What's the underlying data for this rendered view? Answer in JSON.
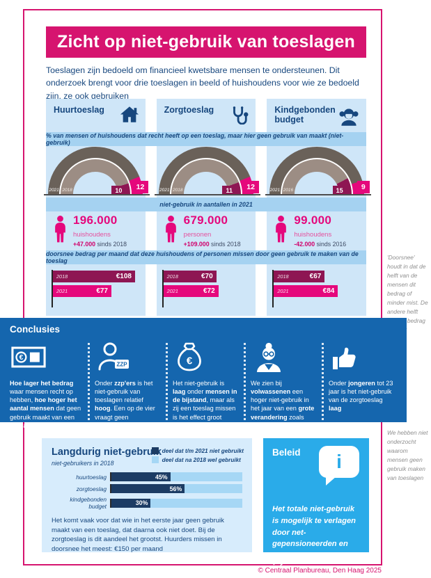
{
  "page": {
    "title": "Zicht op niet-gebruik van toeslagen",
    "intro": "Toeslagen zijn bedoeld om financieel kwetsbare mensen te ondersteunen. Dit onderzoek brengt voor drie toeslagen in beeld of huishoudens voor wie ze bedoeld zijn, ze ook gebruiken",
    "footer_credit": "© Centraal Planbureau, Den Haag 2025"
  },
  "colors": {
    "pink": "#d6146f",
    "pink_bright": "#e5087c",
    "maroon": "#8e1653",
    "navy": "#17477e",
    "bar_navy": "#1c3c64",
    "conclusies_blue": "#1566ae",
    "beleid_blue": "#2aabe9",
    "column_bg": "#cfe6f8",
    "banner_bg": "#a5d2f1",
    "panel_bg": "#d7ecfc",
    "bar_light": "#a6d7f5",
    "gauge_outer": "#6a6159",
    "gauge_inner": "#9c8d84",
    "note_gray": "#8f8f8f"
  },
  "banners": {
    "percent": "% van mensen of huishoudens dat recht heeft op een toeslag, maar hier geen gebruik van maakt (niet-gebruik)",
    "counts": "niet-gebruik in aantallen in 2021",
    "amounts": "doorsnee bedrag per maand dat deze huishoudens of personen missen door geen gebruik te maken van de toeslag"
  },
  "columns": [
    {
      "name": "Huurtoeslag",
      "icon": "house-icon",
      "gauge": {
        "outer_year": "2021",
        "outer_value": 12,
        "inner_year": "2018",
        "inner_value": 10
      },
      "count": {
        "value": "196.000",
        "unit": "huishoudens",
        "change": "+47.000",
        "since": "sinds 2018"
      },
      "amounts": [
        {
          "year": "2018",
          "value": 108,
          "display": "€108"
        },
        {
          "year": "2021",
          "value": 77,
          "display": "€77"
        }
      ]
    },
    {
      "name": "Zorgtoeslag",
      "icon": "stethoscope-icon",
      "gauge": {
        "outer_year": "2021",
        "outer_value": 12,
        "inner_year": "2018",
        "inner_value": 11
      },
      "count": {
        "value": "679.000",
        "unit": "personen",
        "change": "+109.000",
        "since": "sinds 2018"
      },
      "amounts": [
        {
          "year": "2018",
          "value": 70,
          "display": "€70"
        },
        {
          "year": "2021",
          "value": 72,
          "display": "€72"
        }
      ]
    },
    {
      "name": "Kindgebonden budget",
      "icon": "girl-icon",
      "gauge": {
        "outer_year": "2021",
        "outer_value": 9,
        "inner_year": "2016",
        "inner_value": 15
      },
      "count": {
        "value": "99.000",
        "unit": "huishoudens",
        "change": "-42.000",
        "since": "sinds 2016"
      },
      "amounts": [
        {
          "year": "2018",
          "value": 67,
          "display": "€67"
        },
        {
          "year": "2021",
          "value": 84,
          "display": "€84"
        }
      ]
    }
  ],
  "side_notes": {
    "doorsnee": "'Doorsnee' houdt in dat de helft van de mensen dit bedrag of minder mist. De andere helft mist dit bedrag of meer",
    "onderzoek": "We hebben niet onderzocht waarom mensen geen gebruik maken van toeslagen"
  },
  "conclusies": {
    "title": "Conclusies",
    "items": [
      {
        "icon": "euro-banknote-icon",
        "text": "**Hoe lager het bedrag** waar mensen recht op hebben, **hoe hoger het aantal mensen** dat geen gebruik maakt van een toeslag"
      },
      {
        "icon": "zzp-person-icon",
        "text": "Onder **zzp'ers** is het niet-gebruik van toeslagen relatief **hoog**. Een op de vier vraagt geen huurtoeslag aan"
      },
      {
        "icon": "money-bag-icon",
        "text": "Het niet-gebruik is **laag** onder **mensen in de bijstand**, maar als zij een toeslag missen is het effect groot"
      },
      {
        "icon": "older-woman-icon",
        "text": "We zien bij **volwassenen** een hoger niet-gebruik in het jaar van een **grote verandering** zoals een eerste kind of pensioen"
      },
      {
        "icon": "thumbs-up-icon",
        "text": "Onder **jongeren** tot 23 jaar is het niet-gebruik van de zorgtoeslag **laag**"
      }
    ]
  },
  "langdurig": {
    "title": "Langdurig niet-gebruik",
    "subtitle": "niet-gebruikers in 2018",
    "legend": [
      {
        "label": "deel dat t/m 2021 niet gebruikt",
        "color": "#1c3c64"
      },
      {
        "label": "deel dat na 2018 wel gebruikt",
        "color": "#a6d7f5"
      }
    ],
    "rows": [
      {
        "label": "huurtoeslag",
        "pct": 45,
        "display": "45%"
      },
      {
        "label": "zorgtoeslag",
        "pct": 56,
        "display": "56%"
      },
      {
        "label": "kindgebonden budget",
        "pct": 30,
        "display": "30%"
      }
    ],
    "body": "Het komt vaak voor dat wie in het eerste jaar geen gebruik maakt van een toeslag, dat daarna ook niet doet. Bij de zorgtoeslag is dit aandeel het grootst. Huurders missen in doorsnee het meest: €150 per maand"
  },
  "beleid": {
    "title": "Beleid",
    "text": "Het totale niet-gebruik is mogelijk te verlagen door net-gepensioneerden en zzp'ers gerichter te informeren"
  },
  "chart_data": [
    {
      "type": "gauge",
      "id": "niet-gebruik-huurtoeslag",
      "title": "Huurtoeslag",
      "unit": "% niet-gebruik",
      "range": [
        0,
        100
      ],
      "series": [
        {
          "name": "2021",
          "value": 12
        },
        {
          "name": "2018",
          "value": 10
        }
      ]
    },
    {
      "type": "gauge",
      "id": "niet-gebruik-zorgtoeslag",
      "title": "Zorgtoeslag",
      "unit": "% niet-gebruik",
      "range": [
        0,
        100
      ],
      "series": [
        {
          "name": "2021",
          "value": 12
        },
        {
          "name": "2018",
          "value": 11
        }
      ]
    },
    {
      "type": "gauge",
      "id": "niet-gebruik-kindgebonden-budget",
      "title": "Kindgebonden budget",
      "unit": "% niet-gebruik",
      "range": [
        0,
        100
      ],
      "series": [
        {
          "name": "2021",
          "value": 9
        },
        {
          "name": "2016",
          "value": 15
        }
      ]
    },
    {
      "type": "bar",
      "id": "doorsnee-bedrag-per-maand",
      "title": "doorsnee bedrag per maand dat deze huishoudens of personen missen door geen gebruik te maken van de toeslag",
      "unit": "€",
      "categories": [
        "Huurtoeslag",
        "Zorgtoeslag",
        "Kindgebonden budget"
      ],
      "series": [
        {
          "name": "2018",
          "values": [
            108,
            70,
            67
          ]
        },
        {
          "name": "2021",
          "values": [
            77,
            72,
            84
          ]
        }
      ]
    },
    {
      "type": "bar",
      "id": "langdurig-niet-gebruik",
      "title": "Langdurig niet-gebruik",
      "subtitle": "niet-gebruikers in 2018",
      "unit": "%",
      "stacked": true,
      "categories": [
        "huurtoeslag",
        "zorgtoeslag",
        "kindgebonden budget"
      ],
      "series": [
        {
          "name": "deel dat t/m 2021 niet gebruikt",
          "values": [
            45,
            56,
            30
          ]
        },
        {
          "name": "deel dat na 2018 wel gebruikt",
          "values": [
            55,
            44,
            70
          ]
        }
      ]
    }
  ]
}
